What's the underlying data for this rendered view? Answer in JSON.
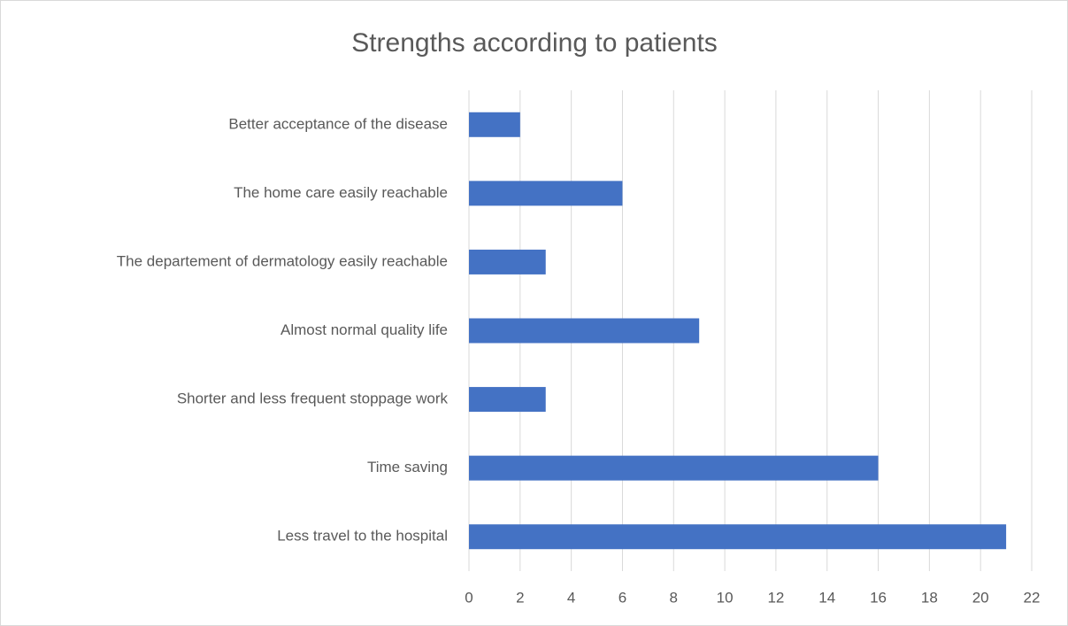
{
  "chart_data": {
    "type": "bar",
    "orientation": "horizontal",
    "title": "Strengths according to patients",
    "categories": [
      "Better acceptance of the disease",
      "The home care easily reachable",
      "The departement of dermatology easily reachable",
      "Almost normal quality life",
      "Shorter and less frequent stoppage work",
      "Time saving",
      "Less travel to the hospital"
    ],
    "values": [
      2,
      6,
      3,
      9,
      3,
      16,
      21
    ],
    "color": "#4472c4",
    "xlim": [
      0,
      22
    ],
    "xticks": [
      0,
      2,
      4,
      6,
      8,
      10,
      12,
      14,
      16,
      18,
      20,
      22
    ],
    "grid": true
  }
}
